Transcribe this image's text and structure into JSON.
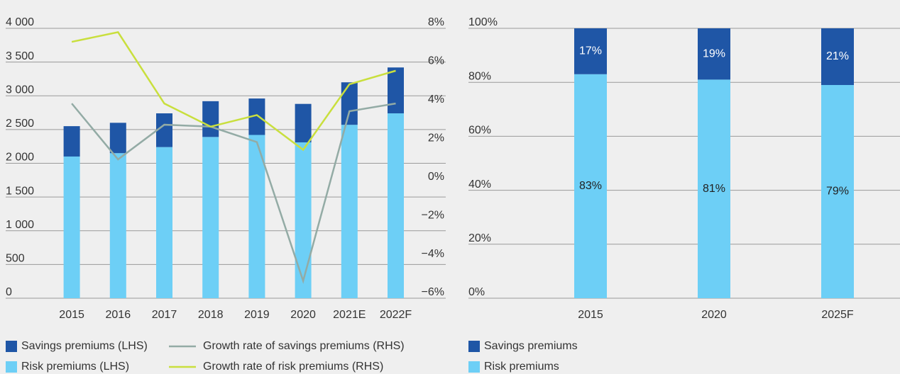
{
  "chart_data": [
    {
      "type": "bar",
      "stacked": true,
      "categories": [
        "2015",
        "2016",
        "2017",
        "2018",
        "2019",
        "2020",
        "2021E",
        "2022F"
      ],
      "series": [
        {
          "name": "Risk premiums (LHS)",
          "color": "#6dcff6",
          "type": "bar",
          "values": [
            2100,
            2150,
            2240,
            2390,
            2420,
            2310,
            2570,
            2740
          ]
        },
        {
          "name": "Savings premiums (LHS)",
          "color": "#1f56a6",
          "type": "bar",
          "values": [
            450,
            450,
            500,
            530,
            540,
            570,
            630,
            680
          ]
        },
        {
          "name": "Growth rate of savings premiums (RHS)",
          "color": "#93aba5",
          "type": "line",
          "axis": "y2",
          "values": [
            4.1,
            1.2,
            3.0,
            2.9,
            2.1,
            -5.1,
            3.7,
            4.1
          ]
        },
        {
          "name": "Growth rate of risk premiums (RHS)",
          "color": "#c9df3d",
          "type": "line",
          "axis": "y2",
          "values": [
            7.3,
            7.8,
            4.1,
            2.9,
            3.5,
            1.7,
            5.1,
            5.8
          ]
        }
      ],
      "ylim": [
        0,
        4000
      ],
      "yticks": [
        0,
        500,
        {
          "value": 1000,
          "label": "1 000"
        },
        {
          "value": 1500,
          "label": "1 500"
        },
        {
          "value": 2000,
          "label": "2 000"
        },
        {
          "value": 2500,
          "label": "2 500"
        },
        {
          "value": 3000,
          "label": "3 000"
        },
        {
          "value": 3500,
          "label": "3 500"
        },
        {
          "value": 4000,
          "label": "4 000"
        }
      ],
      "y2lim": [
        -6,
        8
      ],
      "y2ticks": [
        {
          "value": -6,
          "label": "−6%"
        },
        {
          "value": -4,
          "label": "−4%"
        },
        {
          "value": -2,
          "label": "−2%"
        },
        {
          "value": 0,
          "label": "0%"
        },
        {
          "value": 2,
          "label": "2%"
        },
        {
          "value": 4,
          "label": "4%"
        },
        {
          "value": 6,
          "label": "6%"
        },
        {
          "value": 8,
          "label": "8%"
        }
      ],
      "grid": true
    },
    {
      "type": "bar",
      "stacked": true,
      "categories": [
        "2015",
        "2020",
        "2025F"
      ],
      "series": [
        {
          "name": "Risk premiums",
          "color": "#6dcff6",
          "values": [
            83,
            81,
            79
          ],
          "value_labels": [
            "83%",
            "81%",
            "79%"
          ]
        },
        {
          "name": "Savings premiums",
          "color": "#1f56a6",
          "values": [
            17,
            19,
            21
          ],
          "value_labels": [
            "17%",
            "19%",
            "21%"
          ]
        }
      ],
      "ylim": [
        0,
        100
      ],
      "yticks": [
        {
          "value": 0,
          "label": "0%"
        },
        {
          "value": 20,
          "label": "20%"
        },
        {
          "value": 40,
          "label": "40%"
        },
        {
          "value": 60,
          "label": "60%"
        },
        {
          "value": 80,
          "label": "80%"
        },
        {
          "value": 100,
          "label": "100%"
        }
      ],
      "grid": true
    }
  ]
}
